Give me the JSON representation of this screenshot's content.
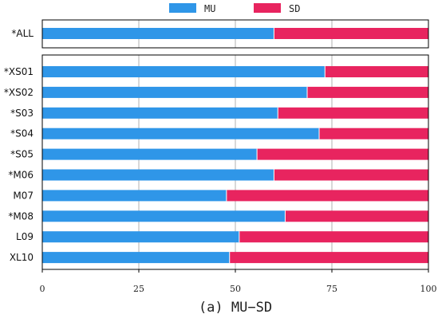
{
  "chart_data": {
    "type": "bar",
    "stacked": true,
    "orientation": "horizontal",
    "caption": "(a) MU−SD",
    "legend": {
      "placement": "top",
      "entries": [
        "MU",
        "SD"
      ]
    },
    "colors": {
      "MU": "#2f96e8",
      "SD": "#e8245f"
    },
    "grid": true,
    "xlim": [
      0,
      100
    ],
    "xticks": [
      "0",
      "25",
      "50",
      "75",
      "100"
    ],
    "top_panel": {
      "categories": [
        "*ALL"
      ],
      "series": [
        {
          "name": "MU",
          "values": [
            60
          ]
        },
        {
          "name": "SD",
          "values": [
            40
          ]
        }
      ]
    },
    "bottom_panel": {
      "categories": [
        "*XS01",
        "*XS02",
        "*S03",
        "*S04",
        "*S05",
        "*M06",
        "M07",
        "*M08",
        "L09",
        "XL10"
      ],
      "series": [
        {
          "name": "MU",
          "values": [
            73.2,
            68.6,
            61,
            71.7,
            55.6,
            60,
            47.7,
            62.9,
            51,
            48.5
          ]
        },
        {
          "name": "SD",
          "values": [
            26.8,
            31.4,
            39,
            28.3,
            44.4,
            40,
            52.3,
            37.1,
            49,
            51.5
          ]
        }
      ]
    }
  }
}
